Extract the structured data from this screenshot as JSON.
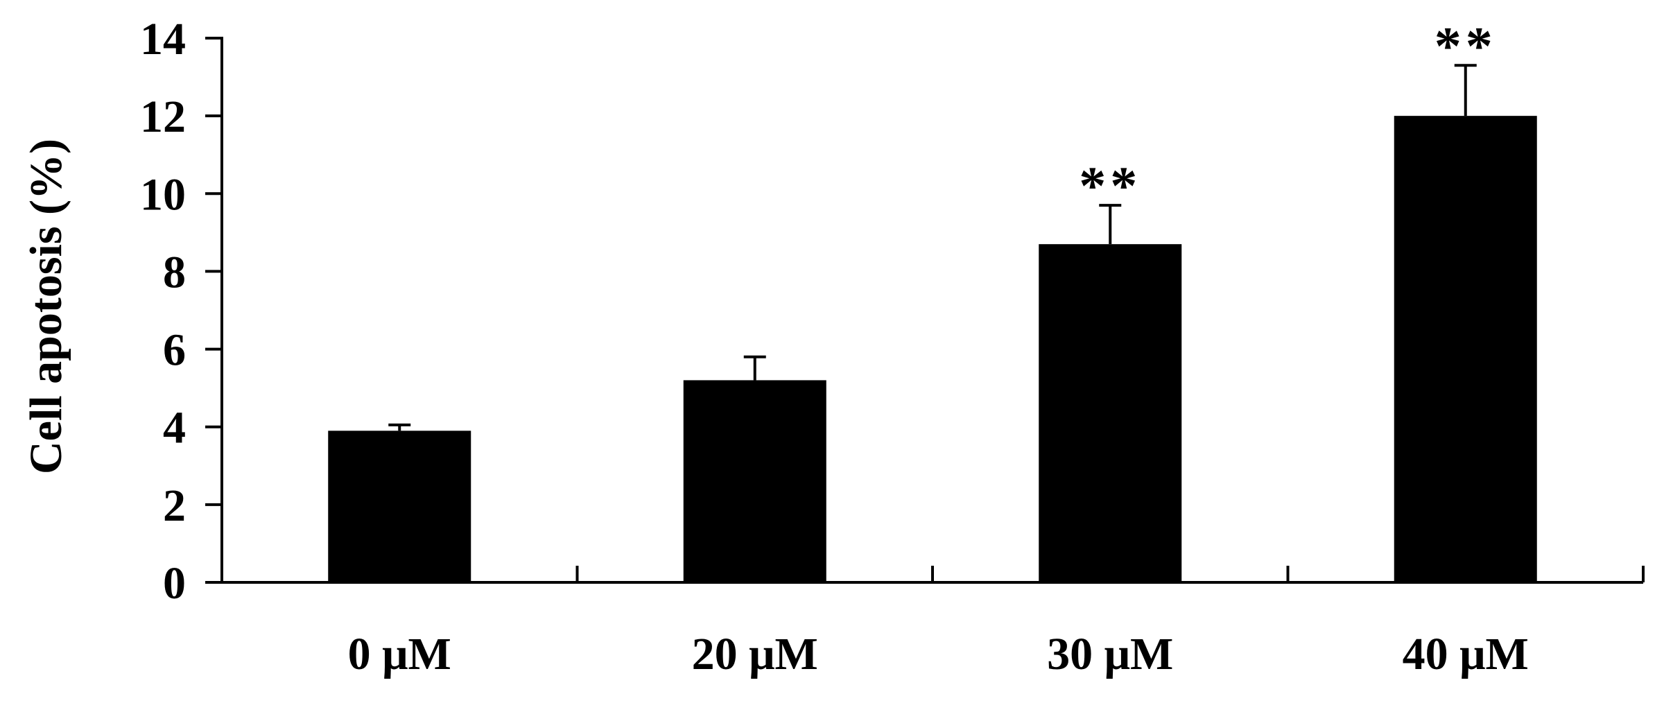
{
  "chart_data": {
    "type": "bar",
    "categories": [
      "0 μM",
      "20 μM",
      "30 μM",
      "40 μM"
    ],
    "values": [
      3.9,
      5.2,
      8.7,
      12.0
    ],
    "error": [
      0.15,
      0.6,
      1.0,
      1.3
    ],
    "significance": [
      "",
      "",
      "**",
      "**"
    ],
    "title": "",
    "xlabel": "",
    "ylabel": "Cell apotosis (%)",
    "ylim": [
      0,
      14
    ],
    "yticks": [
      0,
      2,
      4,
      6,
      8,
      10,
      12,
      14
    ],
    "grid": false,
    "legend": "none",
    "colors": {
      "bar": "#000000",
      "axis": "#000000"
    }
  }
}
